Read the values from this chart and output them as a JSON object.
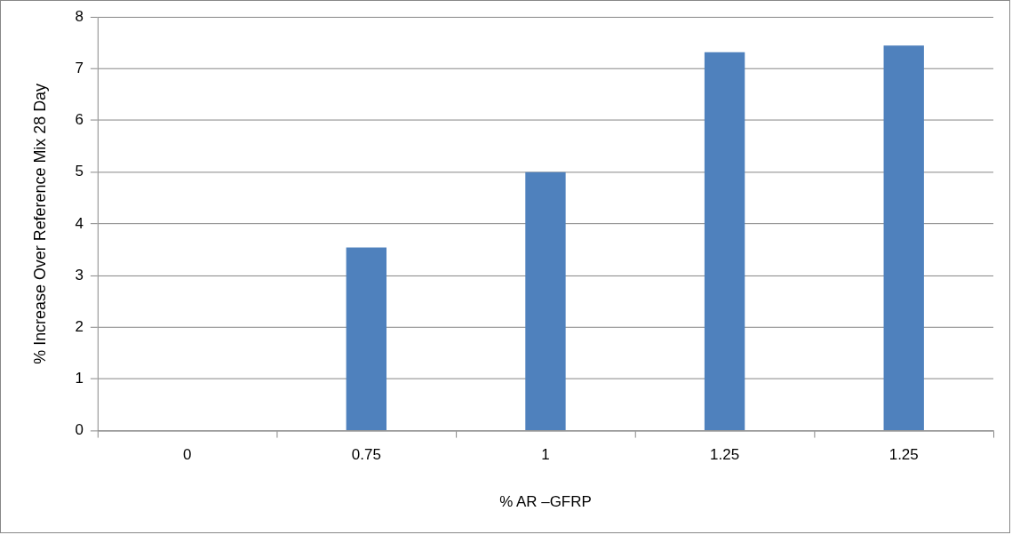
{
  "chart_data": {
    "type": "bar",
    "xlabel": "% AR –GFRP",
    "ylabel": "% Increase Over Reference Mix 28 Day",
    "categories": [
      "0",
      "0.75",
      "1",
      "1.25",
      "1.25"
    ],
    "values": [
      0,
      3.54,
      5.0,
      7.32,
      7.45
    ],
    "color": "#4f81bd",
    "ylim": [
      0,
      8
    ],
    "yticks": [
      0,
      1,
      2,
      3,
      4,
      5,
      6,
      7,
      8
    ],
    "grid": "y",
    "legend": false
  }
}
